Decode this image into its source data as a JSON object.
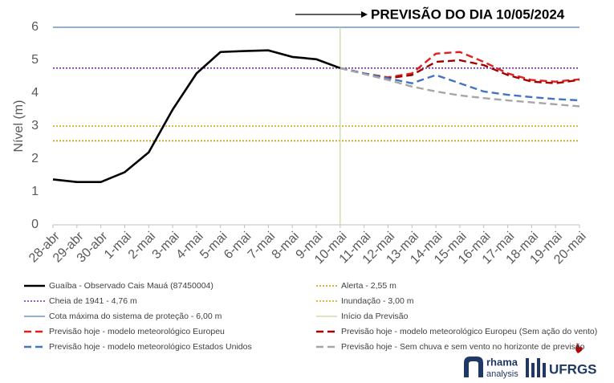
{
  "chart_data": {
    "type": "line",
    "title": "PREVISÃO DO DIA 10/05/2024",
    "y_label": "Nível (m)",
    "categories": [
      "28-abr",
      "29-abr",
      "30-abr",
      "1-mai",
      "2-mai",
      "3-mai",
      "4-mai",
      "5-mai",
      "6-mai",
      "7-mai",
      "8-mai",
      "9-mai",
      "10-mai",
      "11-mai",
      "12-mai",
      "13-mai",
      "14-mai",
      "15-mai",
      "16-mai",
      "17-mai",
      "18-mai",
      "19-mai",
      "20-mai"
    ],
    "ylim": [
      0,
      6
    ],
    "yticks": [
      0,
      1,
      2,
      3,
      4,
      5,
      6
    ],
    "series": [
      {
        "name": "Guaíba - Observado Cais Mauá (87450004)",
        "color": "#000000",
        "style": "solid",
        "values": [
          1.38,
          1.3,
          1.3,
          1.6,
          2.2,
          3.5,
          4.6,
          5.25,
          5.28,
          5.3,
          5.1,
          5.03,
          4.76,
          null,
          null,
          null,
          null,
          null,
          null,
          null,
          null,
          null,
          null
        ]
      },
      {
        "name": "Previsão hoje - modelo meteorológico Europeu",
        "color": "#e02020",
        "style": "dashed",
        "values": [
          null,
          null,
          null,
          null,
          null,
          null,
          null,
          null,
          null,
          null,
          null,
          null,
          4.76,
          4.6,
          4.48,
          4.6,
          5.2,
          5.25,
          4.95,
          4.6,
          4.4,
          4.35,
          4.42
        ]
      },
      {
        "name": "Previsão hoje - modelo meteorológico Europeu (Sem ação do vento)",
        "color": "#a00000",
        "style": "dashed",
        "values": [
          null,
          null,
          null,
          null,
          null,
          null,
          null,
          null,
          null,
          null,
          null,
          null,
          4.76,
          4.6,
          4.45,
          4.55,
          4.95,
          5.0,
          4.85,
          4.55,
          4.35,
          4.3,
          4.4
        ]
      },
      {
        "name": "Previsão hoje - modelo meteorológico Estados Unidos",
        "color": "#4472c4",
        "style": "dashed",
        "values": [
          null,
          null,
          null,
          null,
          null,
          null,
          null,
          null,
          null,
          null,
          null,
          null,
          4.76,
          4.6,
          4.45,
          4.3,
          4.55,
          4.3,
          4.05,
          3.95,
          3.88,
          3.82,
          3.78
        ]
      },
      {
        "name": "Previsão hoje - Sem chuva e sem vento no horizonte de previsão",
        "color": "#a6a6a6",
        "style": "dashed",
        "values": [
          null,
          null,
          null,
          null,
          null,
          null,
          null,
          null,
          null,
          null,
          null,
          null,
          4.76,
          4.58,
          4.4,
          4.2,
          4.05,
          3.93,
          3.85,
          3.78,
          3.72,
          3.66,
          3.6
        ]
      }
    ],
    "hlines": [
      {
        "name": "Alerta  - 2,55 m",
        "color": "#c99a06",
        "style": "dotted",
        "value": 2.55
      },
      {
        "name": "Cheia de 1941 - 4,76 m",
        "color": "#7030a0",
        "style": "dotted",
        "value": 4.76
      },
      {
        "name": "Inundação - 3,00 m",
        "color": "#d4a017",
        "style": "dotted",
        "value": 3.0
      },
      {
        "name": "Cota máxima do sistema de proteção - 6,00 m",
        "color": "#4f81bd",
        "style": "solid",
        "value": 6.0
      }
    ],
    "vline": {
      "name": "Início da Previsão",
      "color": "#c4d79b",
      "category": "10-mai"
    },
    "logos": [
      "rhama",
      "analysis",
      "UFRGS"
    ]
  }
}
